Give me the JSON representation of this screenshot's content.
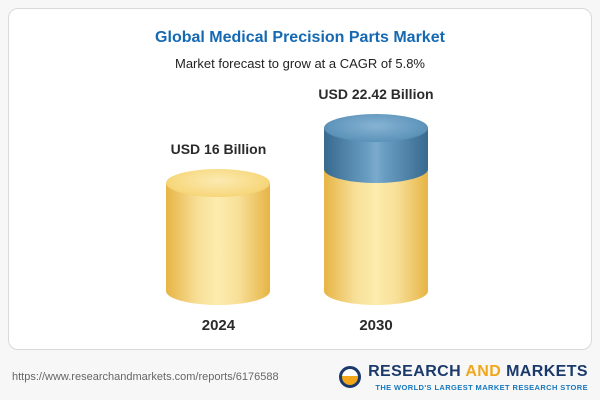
{
  "page": {
    "title": "Global Medical Precision Parts Market",
    "subtitle": "Market forecast to grow at a CAGR of 5.8%"
  },
  "chart_data": {
    "type": "bar",
    "variant": "3d-cylinder",
    "categories": [
      "2024",
      "2030"
    ],
    "values": [
      16,
      22.42
    ],
    "value_labels": [
      "USD 16 Billion",
      "USD 22.42 Billion"
    ],
    "title": "Global Medical Precision Parts Market",
    "subtitle": "Market forecast to grow at a CAGR of 5.8%",
    "unit": "USD Billion",
    "cagr_percent": 5.8,
    "ylim": [
      0,
      22.42
    ],
    "legend": "none",
    "grid": false,
    "colors": {
      "base_segment": "#f3cd6d",
      "growth_segment": "#4d81ab",
      "title": "#1569b3"
    }
  },
  "footer": {
    "url": "https://www.researchandmarkets.com/reports/6176588",
    "brand": {
      "research": "RESEARCH",
      "and": "AND",
      "markets": "MARKETS",
      "tagline": "THE WORLD'S LARGEST MARKET RESEARCH STORE"
    }
  }
}
